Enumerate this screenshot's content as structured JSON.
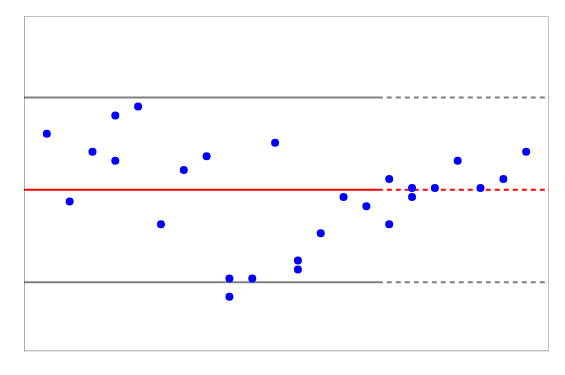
{
  "chart_data": {
    "type": "scatter",
    "xlim": [
      1973,
      1996
    ],
    "ylim": [
      0.45,
      0.82
    ],
    "grid": false,
    "tick_labels": false,
    "series": [
      {
        "type": "scatter",
        "color": "#0000FF",
        "marker": "circle",
        "x": [
          1974,
          1975,
          1976,
          1977,
          1977,
          1978,
          1979,
          1980,
          1981,
          1982,
          1982,
          1983,
          1984,
          1985,
          1985,
          1986,
          1987,
          1988,
          1989,
          1989,
          1990,
          1990,
          1991,
          1992,
          1993,
          1994,
          1995
        ],
        "values": [
          0.69,
          0.615,
          0.67,
          0.66,
          0.71,
          0.72,
          0.59,
          0.65,
          0.665,
          0.53,
          0.51,
          0.53,
          0.68,
          0.55,
          0.54,
          0.58,
          0.62,
          0.61,
          0.64,
          0.59,
          0.63,
          0.62,
          0.63,
          0.66,
          0.63,
          0.64,
          0.67
        ]
      },
      {
        "type": "line",
        "color": "#FF0000",
        "line_style": "solid",
        "x": [
          1973,
          1988.5
        ],
        "values": [
          0.628,
          0.628
        ]
      },
      {
        "type": "line",
        "color": "#808080",
        "line_style": "solid",
        "x": [
          1973,
          1988.5
        ],
        "values": [
          0.73,
          0.73
        ]
      },
      {
        "type": "line",
        "color": "#808080",
        "line_style": "solid",
        "x": [
          1973,
          1988.5
        ],
        "values": [
          0.526,
          0.526
        ]
      },
      {
        "type": "line",
        "color": "#FF0000",
        "line_style": "dashed",
        "x": [
          1988.5,
          1996
        ],
        "values": [
          0.628,
          0.628
        ]
      },
      {
        "type": "line",
        "color": "#808080",
        "line_style": "dashed",
        "x": [
          1988.5,
          1996
        ],
        "values": [
          0.73,
          0.73
        ]
      },
      {
        "type": "line",
        "color": "#808080",
        "line_style": "dashed",
        "x": [
          1988.5,
          1996
        ],
        "values": [
          0.526,
          0.526
        ]
      }
    ]
  }
}
